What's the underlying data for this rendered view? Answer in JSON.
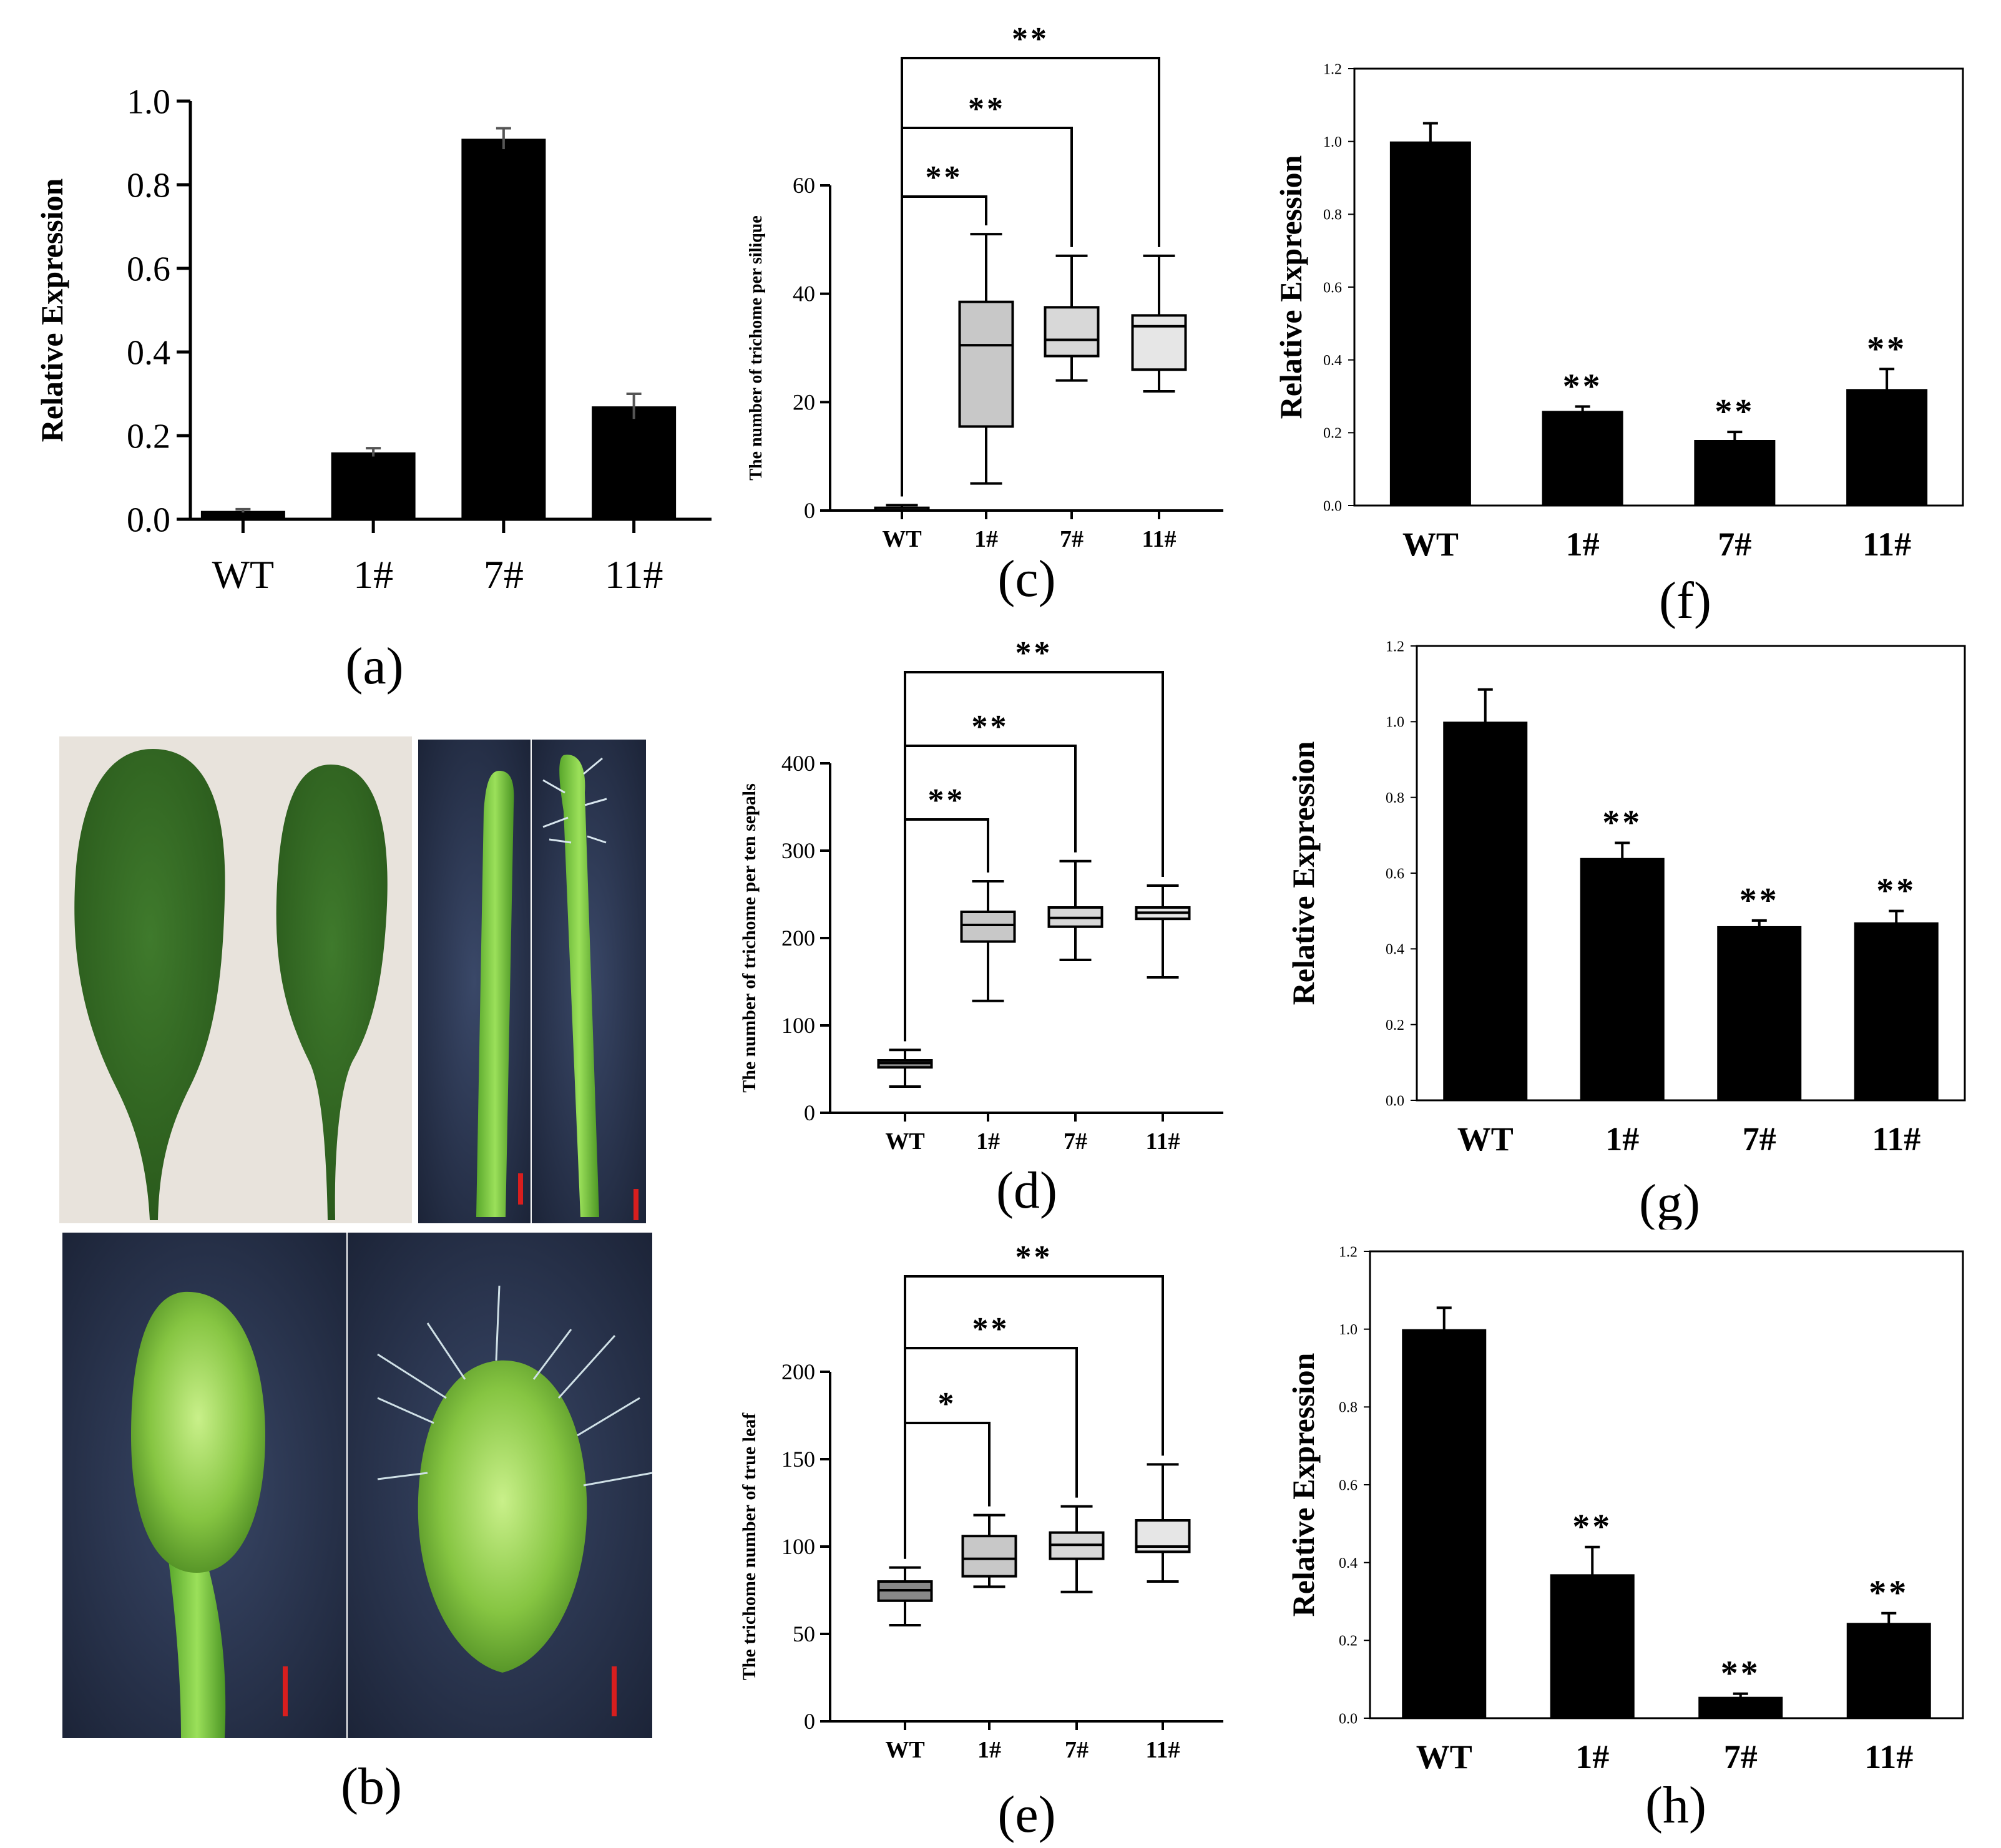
{
  "chart_data": [
    {
      "id": "a",
      "type": "bar",
      "title": "",
      "caption": "(a)",
      "ylabel": "Relative Expression",
      "xlabel": "",
      "categories": [
        "WT",
        "1#",
        "7#",
        "11#"
      ],
      "values": [
        0.02,
        0.16,
        0.91,
        0.27
      ],
      "errors": [
        0.004,
        0.01,
        0.025,
        0.03
      ],
      "ylim": [
        0,
        1.0
      ],
      "yticks": [
        "0.0",
        "0.2",
        "0.4",
        "0.6",
        "0.8",
        "1.0"
      ],
      "significance": [
        "",
        "",
        "",
        ""
      ]
    },
    {
      "id": "c",
      "type": "box",
      "caption": "(c)",
      "ylabel": "The number of trichome per silique",
      "categories": [
        "WT",
        "1#",
        "7#",
        "11#"
      ],
      "boxes": [
        {
          "min": 0,
          "q1": 0,
          "median": 0,
          "q3": 0.5,
          "max": 1
        },
        {
          "min": 5,
          "q1": 15.5,
          "median": 30.5,
          "q3": 38.5,
          "max": 51
        },
        {
          "min": 24,
          "q1": 28.5,
          "median": 31.5,
          "q3": 37.5,
          "max": 47
        },
        {
          "min": 22,
          "q1": 26,
          "median": 34,
          "q3": 36,
          "max": 47
        }
      ],
      "ylim": [
        0,
        60
      ],
      "yticks": [
        "0",
        "20",
        "40",
        "60"
      ],
      "comparisons": [
        {
          "from": "WT",
          "to": "1#",
          "label": "**"
        },
        {
          "from": "WT",
          "to": "7#",
          "label": "**"
        },
        {
          "from": "WT",
          "to": "11#",
          "label": "**"
        }
      ]
    },
    {
      "id": "d",
      "type": "box",
      "caption": "(d)",
      "ylabel": "The number of trichome per ten sepals",
      "categories": [
        "WT",
        "1#",
        "7#",
        "11#"
      ],
      "boxes": [
        {
          "min": 30,
          "q1": 52,
          "median": 57,
          "q3": 60,
          "max": 72
        },
        {
          "min": 128,
          "q1": 196,
          "median": 215,
          "q3": 230,
          "max": 265
        },
        {
          "min": 175,
          "q1": 213,
          "median": 223,
          "q3": 235,
          "max": 288
        },
        {
          "min": 155,
          "q1": 222,
          "median": 229,
          "q3": 235,
          "max": 260
        }
      ],
      "ylim": [
        0,
        400
      ],
      "yticks": [
        "0",
        "100",
        "200",
        "300",
        "400"
      ],
      "comparisons": [
        {
          "from": "WT",
          "to": "1#",
          "label": "**"
        },
        {
          "from": "WT",
          "to": "7#",
          "label": "**"
        },
        {
          "from": "WT",
          "to": "11#",
          "label": "**"
        }
      ]
    },
    {
      "id": "e",
      "type": "box",
      "caption": "(e)",
      "ylabel": "The trichome number of  true leaf",
      "categories": [
        "WT",
        "1#",
        "7#",
        "11#"
      ],
      "boxes": [
        {
          "min": 55,
          "q1": 69,
          "median": 75,
          "q3": 80,
          "max": 88
        },
        {
          "min": 77,
          "q1": 83,
          "median": 93,
          "q3": 106,
          "max": 118
        },
        {
          "min": 74,
          "q1": 93,
          "median": 101,
          "q3": 108,
          "max": 123
        },
        {
          "min": 80,
          "q1": 97,
          "median": 100,
          "q3": 115,
          "max": 147
        }
      ],
      "ylim": [
        0,
        200
      ],
      "yticks": [
        "0",
        "50",
        "100",
        "150",
        "200"
      ],
      "comparisons": [
        {
          "from": "WT",
          "to": "1#",
          "label": "*"
        },
        {
          "from": "WT",
          "to": "7#",
          "label": "**"
        },
        {
          "from": "WT",
          "to": "11#",
          "label": "**"
        }
      ]
    },
    {
      "id": "f",
      "type": "bar",
      "caption": "(f)",
      "ylabel": "Relative Expression",
      "categories": [
        "WT",
        "1#",
        "7#",
        "11#"
      ],
      "values": [
        1.0,
        0.26,
        0.18,
        0.32
      ],
      "errors": [
        0.05,
        0.012,
        0.022,
        0.055
      ],
      "ylim": [
        0,
        1.2
      ],
      "yticks": [
        "0.0",
        "0.2",
        "0.4",
        "0.6",
        "0.8",
        "1.0",
        "1.2"
      ],
      "significance": [
        "",
        "**",
        "**",
        "**"
      ]
    },
    {
      "id": "g",
      "type": "bar",
      "caption": "(g)",
      "ylabel": "Relative Expression",
      "categories": [
        "WT",
        "1#",
        "7#",
        "11#"
      ],
      "values": [
        1.0,
        0.64,
        0.46,
        0.47
      ],
      "errors": [
        0.085,
        0.04,
        0.015,
        0.03
      ],
      "ylim": [
        0,
        1.2
      ],
      "yticks": [
        "0.0",
        "0.2",
        "0.4",
        "0.6",
        "0.8",
        "1.0",
        "1.2"
      ],
      "significance": [
        "",
        "**",
        "**",
        "**"
      ]
    },
    {
      "id": "h",
      "type": "bar",
      "caption": "(h)",
      "ylabel": "Relative Expression",
      "categories": [
        "WT",
        "1#",
        "7#",
        "11#"
      ],
      "values": [
        1.0,
        0.37,
        0.055,
        0.245
      ],
      "errors": [
        0.055,
        0.07,
        0.008,
        0.025
      ],
      "ylim": [
        0,
        1.2
      ],
      "yticks": [
        "0.0",
        "0.2",
        "0.4",
        "0.6",
        "0.8",
        "1.0",
        "1.2"
      ],
      "significance": [
        "",
        "**",
        "**",
        "**"
      ]
    }
  ],
  "photos": {
    "caption": "(b)"
  }
}
